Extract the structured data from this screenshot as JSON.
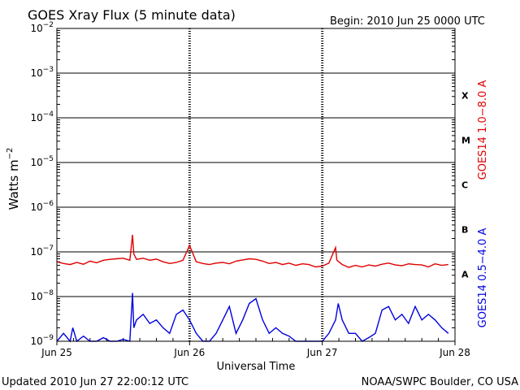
{
  "colors": {
    "long": "#e00000",
    "short": "#0000e0",
    "axis": "#000000",
    "background": "#ffffff"
  },
  "chart_data": {
    "type": "line",
    "title": "GOES Xray Flux (5 minute data)",
    "begin_label": "Begin:  2010 Jun 25 0000 UTC",
    "updated_label": "Updated 2010 Jun 27 22:00:12 UTC",
    "credit_label": "NOAA/SWPC Boulder, CO USA",
    "xlabel": "Universal Time",
    "ylabel_text": "Watts m",
    "ylabel_exp": "−2",
    "yscale": "log",
    "ylim": [
      1e-09,
      0.01
    ],
    "xlim": [
      0,
      3
    ],
    "grid": true,
    "x_ticks": [
      {
        "x": 0,
        "label": "Jun 25"
      },
      {
        "x": 1,
        "label": "Jun 26"
      },
      {
        "x": 2,
        "label": "Jun 27"
      },
      {
        "x": 3,
        "label": "Jun 28"
      }
    ],
    "y_ticks": [
      {
        "exp": -2,
        "base": "10",
        "sup": "−2"
      },
      {
        "exp": -3,
        "base": "10",
        "sup": "−3"
      },
      {
        "exp": -4,
        "base": "10",
        "sup": "−4"
      },
      {
        "exp": -5,
        "base": "10",
        "sup": "−5"
      },
      {
        "exp": -6,
        "base": "10",
        "sup": "−6"
      },
      {
        "exp": -7,
        "base": "10",
        "sup": "−7"
      },
      {
        "exp": -8,
        "base": "10",
        "sup": "−8"
      },
      {
        "exp": -9,
        "base": "10",
        "sup": "−9"
      }
    ],
    "flare_classes": [
      {
        "label": "X",
        "exp": -3.5
      },
      {
        "label": "M",
        "exp": -4.5
      },
      {
        "label": "C",
        "exp": -5.5
      },
      {
        "label": "B",
        "exp": -6.5
      },
      {
        "label": "A",
        "exp": -7.5
      }
    ],
    "series": [
      {
        "name": "GOES14 1.0−8.0 A",
        "color": "#e00000",
        "x": [
          0,
          0.05,
          0.1,
          0.15,
          0.2,
          0.25,
          0.3,
          0.35,
          0.4,
          0.45,
          0.5,
          0.55,
          0.57,
          0.58,
          0.6,
          0.65,
          0.7,
          0.75,
          0.8,
          0.85,
          0.9,
          0.95,
          1.0,
          1.05,
          1.1,
          1.15,
          1.2,
          1.25,
          1.3,
          1.35,
          1.4,
          1.45,
          1.5,
          1.55,
          1.6,
          1.65,
          1.7,
          1.75,
          1.8,
          1.85,
          1.9,
          1.95,
          2.0,
          2.05,
          2.1,
          2.11,
          2.15,
          2.2,
          2.25,
          2.3,
          2.35,
          2.4,
          2.45,
          2.5,
          2.55,
          2.6,
          2.65,
          2.7,
          2.75,
          2.8,
          2.85,
          2.9,
          2.95
        ],
        "y": [
          6e-08,
          5.5e-08,
          5.2e-08,
          5.8e-08,
          5.3e-08,
          6.2e-08,
          5.7e-08,
          6.5e-08,
          6.8e-08,
          7e-08,
          7.2e-08,
          6.5e-08,
          2.4e-07,
          9e-08,
          6.8e-08,
          7.2e-08,
          6.5e-08,
          6.9e-08,
          6e-08,
          5.5e-08,
          5.8e-08,
          6.5e-08,
          1.4e-07,
          6e-08,
          5.5e-08,
          5.2e-08,
          5.6e-08,
          5.8e-08,
          5.4e-08,
          6.2e-08,
          6.6e-08,
          7e-08,
          6.8e-08,
          6.2e-08,
          5.5e-08,
          5.8e-08,
          5.2e-08,
          5.6e-08,
          5e-08,
          5.4e-08,
          5.2e-08,
          4.6e-08,
          4.8e-08,
          5.6e-08,
          1.25e-07,
          6.5e-08,
          5.2e-08,
          4.5e-08,
          5e-08,
          4.6e-08,
          5.1e-08,
          4.8e-08,
          5.3e-08,
          5.6e-08,
          5.1e-08,
          4.9e-08,
          5.4e-08,
          5.2e-08,
          5.1e-08,
          4.6e-08,
          5.4e-08,
          5e-08,
          5.2e-08
        ]
      },
      {
        "name": "GOES14 0.5−4.0 A",
        "color": "#0000e0",
        "x": [
          0,
          0.05,
          0.1,
          0.12,
          0.15,
          0.2,
          0.25,
          0.3,
          0.35,
          0.4,
          0.45,
          0.5,
          0.55,
          0.57,
          0.58,
          0.6,
          0.65,
          0.7,
          0.75,
          0.8,
          0.85,
          0.9,
          0.95,
          1.0,
          1.05,
          1.1,
          1.15,
          1.2,
          1.25,
          1.3,
          1.35,
          1.4,
          1.45,
          1.5,
          1.55,
          1.6,
          1.65,
          1.7,
          1.75,
          1.8,
          1.85,
          1.9,
          1.95,
          2.0,
          2.05,
          2.1,
          2.12,
          2.15,
          2.2,
          2.25,
          2.3,
          2.35,
          2.4,
          2.45,
          2.5,
          2.55,
          2.6,
          2.65,
          2.7,
          2.75,
          2.8,
          2.85,
          2.9,
          2.95
        ],
        "y": [
          1e-09,
          1.5e-09,
          1e-09,
          2e-09,
          1e-09,
          1.3e-09,
          1e-09,
          1e-09,
          1.2e-09,
          1e-09,
          1e-09,
          1.1e-09,
          1e-09,
          1.2e-08,
          2e-09,
          3e-09,
          4e-09,
          2.5e-09,
          3e-09,
          2e-09,
          1.5e-09,
          4e-09,
          5e-09,
          3e-09,
          1.5e-09,
          1e-09,
          1e-09,
          1.5e-09,
          3e-09,
          6e-09,
          1.5e-09,
          3e-09,
          7e-09,
          9e-09,
          3e-09,
          1.5e-09,
          2e-09,
          1.5e-09,
          1.3e-09,
          1e-09,
          1e-09,
          1e-09,
          1e-09,
          1e-09,
          1.5e-09,
          3e-09,
          7e-09,
          3e-09,
          1.5e-09,
          1.5e-09,
          1e-09,
          1.2e-09,
          1.5e-09,
          5e-09,
          6e-09,
          3e-09,
          4e-09,
          2.5e-09,
          6e-09,
          3e-09,
          4e-09,
          3e-09,
          2e-09,
          1.5e-09
        ]
      }
    ]
  }
}
